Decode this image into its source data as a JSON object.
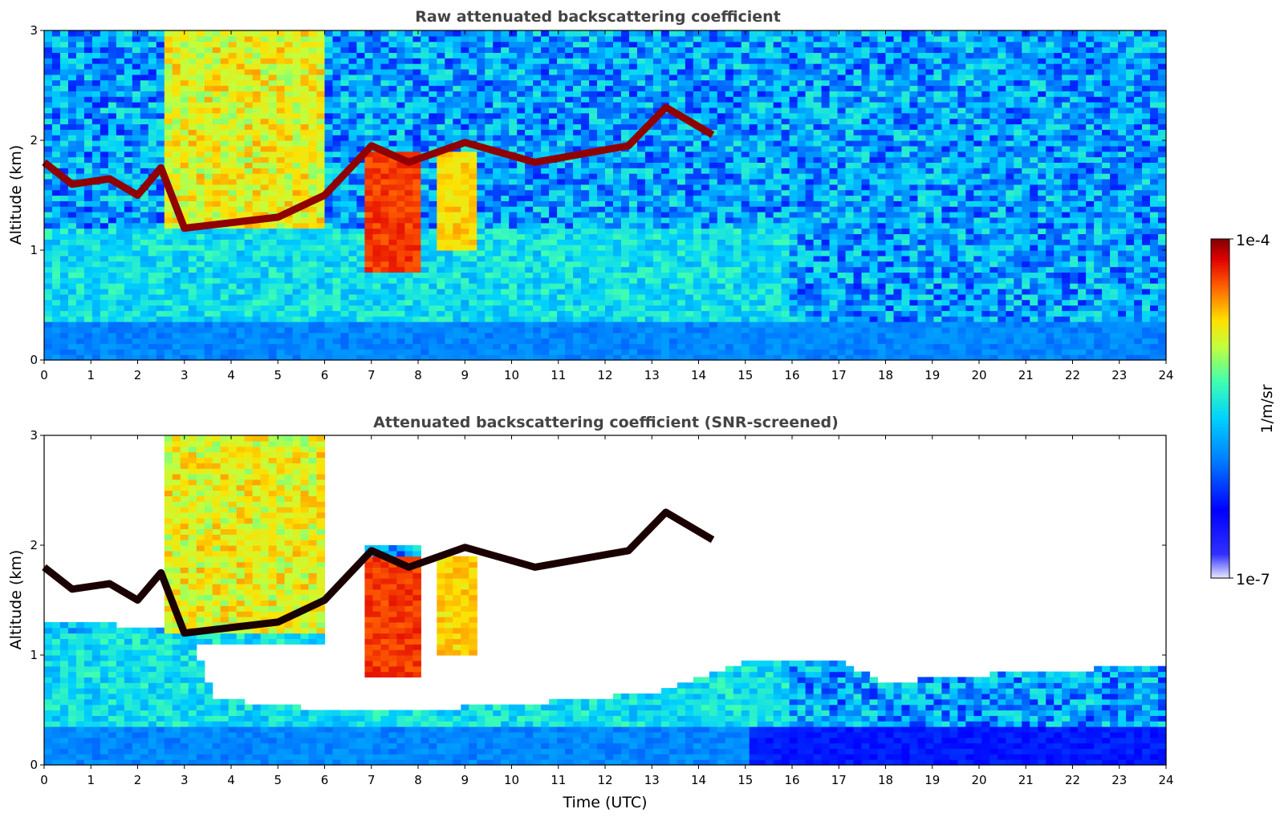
{
  "chart_data": [
    {
      "type": "heatmap",
      "title": "Raw attenuated backscattering coefficient",
      "xlabel": "",
      "ylabel": "Altitude (km)",
      "xlim": [
        0,
        24
      ],
      "ylim": [
        0,
        3
      ],
      "x_ticks": [
        "0",
        "1",
        "2",
        "3",
        "4",
        "5",
        "6",
        "7",
        "8",
        "9",
        "10",
        "11",
        "12",
        "13",
        "14",
        "15",
        "16",
        "17",
        "18",
        "19",
        "20",
        "21",
        "22",
        "23",
        "24"
      ],
      "y_ticks": [
        "0",
        "1",
        "2",
        "3"
      ],
      "cloud_layer_km": [
        [
          0,
          1.8
        ],
        [
          0.6,
          1.6
        ],
        [
          1.4,
          1.65
        ],
        [
          2,
          1.5
        ],
        [
          2.5,
          1.75
        ],
        [
          3,
          1.2
        ],
        [
          5,
          1.3
        ],
        [
          6,
          1.5
        ],
        [
          7,
          1.95
        ],
        [
          7.8,
          1.8
        ],
        [
          9,
          1.98
        ],
        [
          10.5,
          1.8
        ],
        [
          12.5,
          1.95
        ],
        [
          13.3,
          2.3
        ],
        [
          14.3,
          2.05
        ]
      ],
      "snr_screened": false
    },
    {
      "type": "heatmap",
      "title": "Attenuated backscattering coefficient (SNR-screened)",
      "xlabel": "Time (UTC)",
      "ylabel": "Altitude (km)",
      "xlim": [
        0,
        24
      ],
      "ylim": [
        0,
        3
      ],
      "x_ticks": [
        "0",
        "1",
        "2",
        "3",
        "4",
        "5",
        "6",
        "7",
        "8",
        "9",
        "10",
        "11",
        "12",
        "13",
        "14",
        "15",
        "16",
        "17",
        "18",
        "19",
        "20",
        "21",
        "22",
        "23",
        "24"
      ],
      "y_ticks": [
        "0",
        "1",
        "2",
        "3"
      ],
      "valid_signal_top_km": [
        [
          0,
          1.3
        ],
        [
          3,
          1.25
        ],
        [
          3.7,
          0.6
        ],
        [
          6,
          0.5
        ],
        [
          8,
          0.5
        ],
        [
          10,
          0.55
        ],
        [
          13,
          0.65
        ],
        [
          15,
          0.95
        ],
        [
          17,
          0.95
        ],
        [
          18,
          0.75
        ],
        [
          21,
          0.85
        ],
        [
          24,
          0.9
        ]
      ],
      "snr_screened": true
    }
  ],
  "colorbar": {
    "label": "1/m/sr",
    "max_label": "1e-4",
    "min_label": "1e-7",
    "colormap": "jet",
    "colors": [
      "#e0e0ff",
      "#3030ff",
      "#0000ff",
      "#0080ff",
      "#00d0ff",
      "#40ffb0",
      "#c0ff40",
      "#ffe000",
      "#ff6000",
      "#e00000",
      "#800000"
    ]
  }
}
